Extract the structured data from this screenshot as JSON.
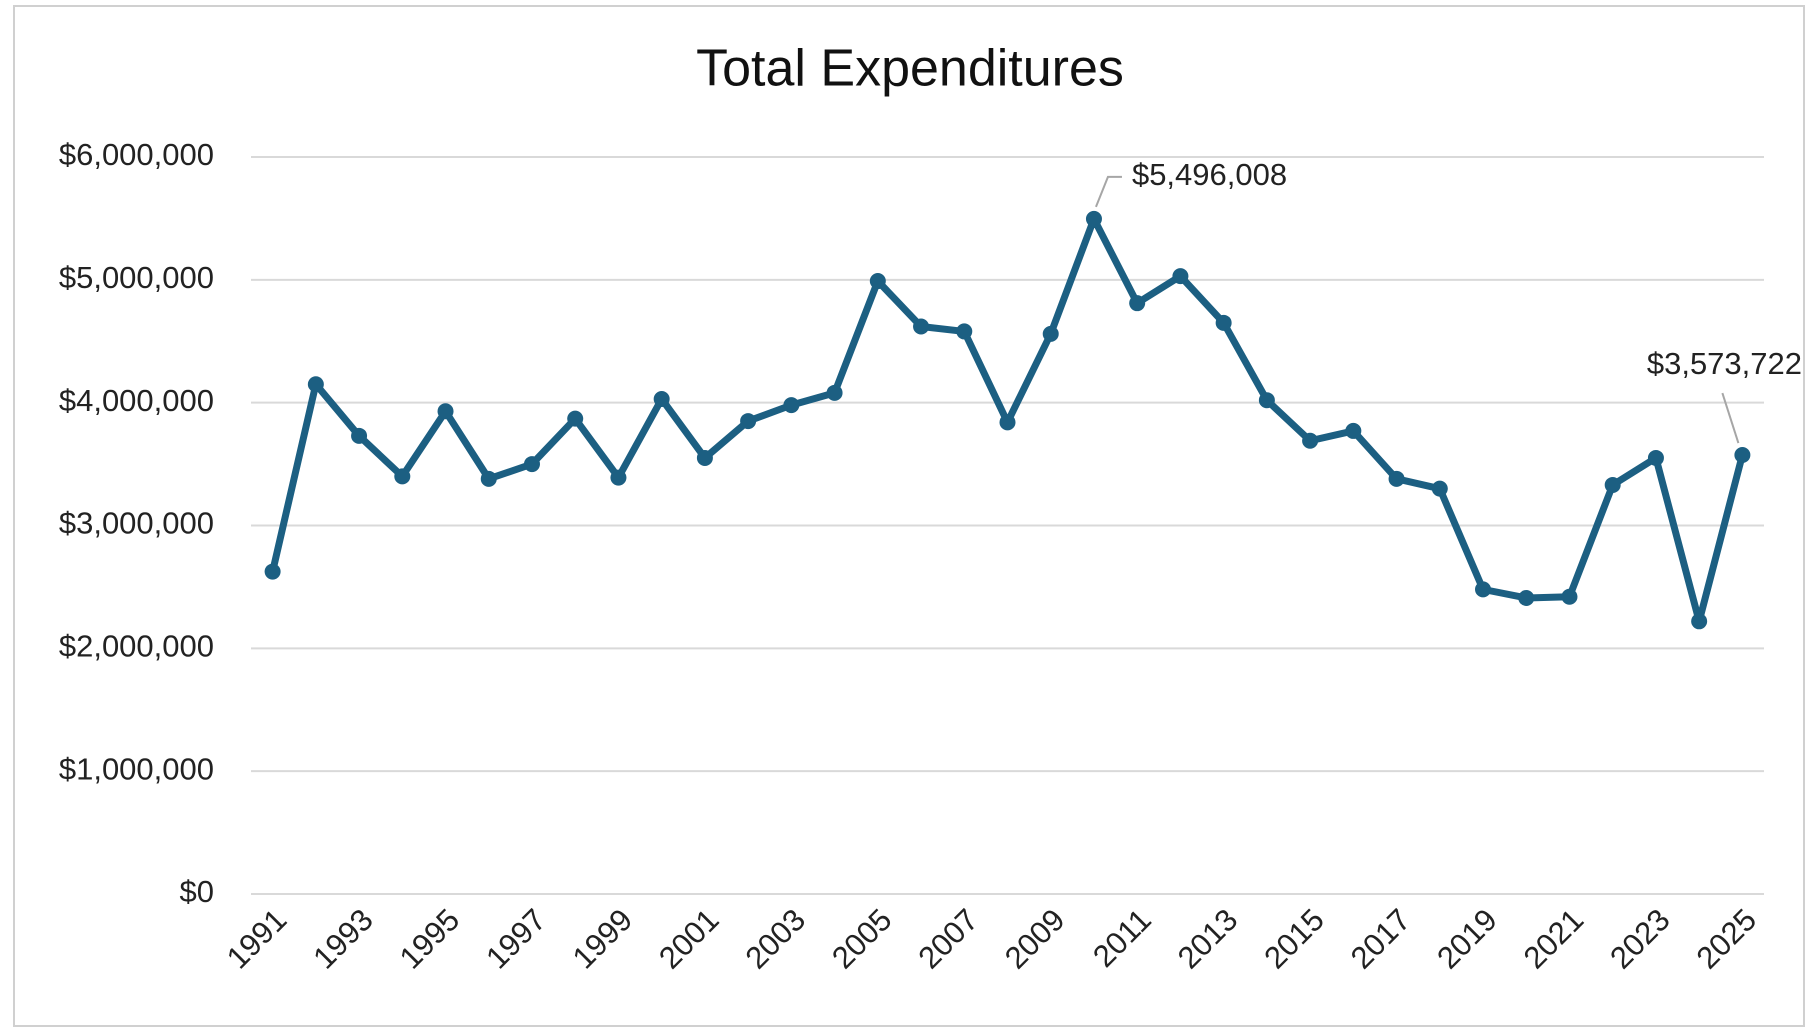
{
  "chart_data": {
    "type": "line",
    "title": "Total Expenditures",
    "categories": [
      "1991",
      null,
      "1993",
      null,
      "1995",
      null,
      "1997",
      null,
      "1999",
      null,
      "2001",
      null,
      "2003",
      null,
      "2005",
      null,
      "2007",
      null,
      "2009",
      null,
      "2011",
      null,
      "2013",
      null,
      "2015",
      null,
      "2017",
      null,
      "2019",
      null,
      "2021",
      null,
      "2023",
      null,
      "2025"
    ],
    "series": [
      {
        "name": "Total Expenditures",
        "color": "#1c5f82",
        "values": [
          2625000,
          4150000,
          3730000,
          3400000,
          3930000,
          3380000,
          3500000,
          3870000,
          3390000,
          4030000,
          3550000,
          3850000,
          3980000,
          4080000,
          4990000,
          4620000,
          4580000,
          3840000,
          4560000,
          5496008,
          4810000,
          5030000,
          4650000,
          4020000,
          3690000,
          3770000,
          3380000,
          3300000,
          2480000,
          2410000,
          2420000,
          3330000,
          3550000,
          2220000,
          3573722
        ],
        "value_labels": [
          null,
          null,
          null,
          null,
          null,
          null,
          null,
          null,
          null,
          null,
          null,
          null,
          null,
          null,
          null,
          null,
          null,
          null,
          null,
          "$5,496,008",
          null,
          null,
          null,
          null,
          null,
          null,
          null,
          null,
          null,
          null,
          null,
          null,
          null,
          null,
          "$3,573,722"
        ]
      }
    ],
    "ylim": [
      0,
      6000000
    ],
    "yticks": [
      {
        "value": 0,
        "label": "$0"
      },
      {
        "value": 1000000,
        "label": "$1,000,000"
      },
      {
        "value": 2000000,
        "label": "$2,000,000"
      },
      {
        "value": 3000000,
        "label": "$3,000,000"
      },
      {
        "value": 4000000,
        "label": "$4,000,000"
      },
      {
        "value": 5000000,
        "label": "$5,000,000"
      },
      {
        "value": 6000000,
        "label": "$6,000,000"
      }
    ],
    "grid": true
  }
}
